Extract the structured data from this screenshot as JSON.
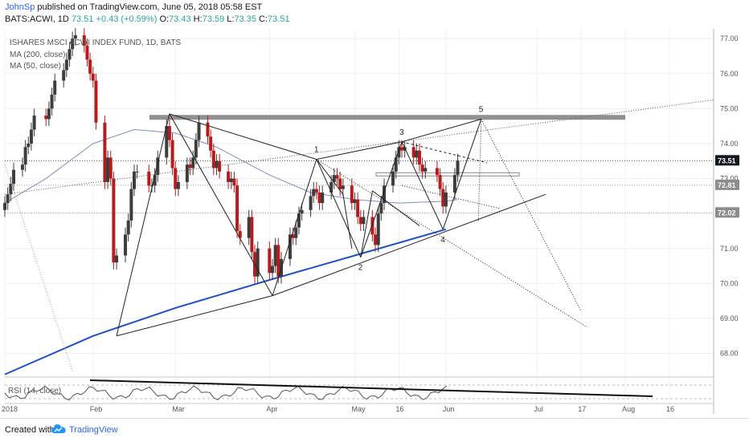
{
  "header": {
    "author": "JohnSp",
    "published_text": "published on TradingView.com, June 05, 2018 05:58 EST",
    "symbol": "BATS:ACWI, 1D",
    "last": "73.51",
    "change": "+0.43 (+0.59%)",
    "o_label": "O:",
    "o_value": "73.43",
    "h_label": "H:",
    "h_value": "73.59",
    "l_label": "L:",
    "l_value": "73.35",
    "c_label": "C:",
    "c_value": "73.51"
  },
  "footer": {
    "created_with": "Created with",
    "brand": "TradingView"
  },
  "colors": {
    "up": "#26a69a",
    "candle_up": "#3d3d3d",
    "candle_down": "#b71c1c",
    "ma200": "#1e50c8",
    "ma50": "#7f8fc8",
    "price_tag": "#131722",
    "level_tag": "#8c8c8c"
  },
  "chart_data": {
    "type": "candlestick",
    "title": "ISHARES MSCI ACWI INDEX FUND, 1D, BATS",
    "legend": [
      "MA (200, close)",
      "MA (50, close)"
    ],
    "ylim": [
      67.3,
      77.25
    ],
    "y_ticks": [
      "77.00",
      "76.00",
      "75.00",
      "74.00",
      "73.00",
      "72.00",
      "71.00",
      "70.00",
      "69.00",
      "68.00"
    ],
    "x_ticks": [
      "2018",
      "Feb",
      "Mar",
      "Apr",
      "May",
      "16",
      "Jun",
      "Jul",
      "17",
      "Aug",
      "16"
    ],
    "x_tick_dates": [
      "2018-01-02",
      "2018-02-01",
      "2018-03-01",
      "2018-04-02",
      "2018-05-01",
      "2018-05-16",
      "2018-06-01",
      "2018-07-02",
      "2018-07-17",
      "2018-08-01",
      "2018-08-16"
    ],
    "last_price": "73.51",
    "price_levels": [
      "72.81",
      "72.02"
    ],
    "resistance_level": 74.75,
    "candles_approx": {
      "description": "daily OHLC, approximate",
      "dates": [
        "01-02",
        "01-03",
        "01-04",
        "01-05",
        "01-08",
        "01-09",
        "01-10",
        "01-11",
        "01-12",
        "01-16",
        "01-17",
        "01-18",
        "01-19",
        "01-22",
        "01-23",
        "01-24",
        "01-25",
        "01-26",
        "01-29",
        "01-30",
        "01-31",
        "02-01",
        "02-02",
        "02-05",
        "02-06",
        "02-07",
        "02-08",
        "02-09",
        "02-12",
        "02-13",
        "02-14",
        "02-15",
        "02-16",
        "02-20",
        "02-21",
        "02-22",
        "02-23",
        "02-26",
        "02-27",
        "02-28",
        "03-01",
        "03-02",
        "03-05",
        "03-06",
        "03-07",
        "03-08",
        "03-09",
        "03-12",
        "03-13",
        "03-14",
        "03-15",
        "03-16",
        "03-19",
        "03-20",
        "03-21",
        "03-22",
        "03-23",
        "03-26",
        "03-27",
        "03-28",
        "03-29",
        "04-02",
        "04-03",
        "04-04",
        "04-05",
        "04-06",
        "04-09",
        "04-10",
        "04-11",
        "04-12",
        "04-13",
        "04-16",
        "04-17",
        "04-18",
        "04-19",
        "04-20",
        "04-23",
        "04-24",
        "04-25",
        "04-26",
        "04-27",
        "04-30",
        "05-01",
        "05-02",
        "05-03",
        "05-04",
        "05-07",
        "05-08",
        "05-09",
        "05-10",
        "05-11",
        "05-14",
        "05-15",
        "05-16",
        "05-17",
        "05-18",
        "05-21",
        "05-22",
        "05-23",
        "05-24",
        "05-25",
        "05-29",
        "05-30",
        "05-31",
        "06-01",
        "06-04",
        "06-05"
      ],
      "open": [
        72.1,
        72.3,
        72.55,
        72.85,
        73.25,
        73.4,
        73.9,
        74.0,
        74.4,
        74.8,
        74.7,
        75.0,
        75.4,
        75.8,
        76.1,
        76.4,
        76.7,
        77.0,
        77.1,
        76.8,
        76.4,
        76.0,
        75.8,
        74.6,
        72.9,
        73.6,
        73.0,
        70.6,
        70.8,
        71.4,
        71.8,
        72.7,
        73.2,
        73.2,
        72.8,
        72.8,
        73.1,
        73.6,
        74.5,
        74.1,
        73.3,
        72.7,
        72.9,
        73.4,
        73.3,
        73.6,
        74.1,
        74.6,
        74.2,
        73.8,
        73.3,
        73.5,
        73.2,
        72.9,
        73.0,
        72.8,
        71.5,
        71.3,
        71.9,
        70.9,
        70.2,
        71.0,
        70.3,
        70.5,
        71.1,
        70.2,
        70.7,
        71.4,
        71.3,
        71.6,
        72.0,
        72.1,
        72.5,
        72.7,
        72.6,
        72.3,
        72.6,
        72.9,
        73.1,
        73.0,
        72.7,
        72.8,
        72.3,
        72.4,
        71.9,
        71.7,
        71.9,
        71.4,
        71.1,
        72.0,
        72.3,
        72.8,
        73.2,
        73.6,
        73.9,
        73.8,
        73.9,
        73.6,
        73.8,
        73.4,
        73.2,
        73.3,
        73.1,
        72.7,
        72.2,
        72.6,
        73.1
      ],
      "close": [
        72.3,
        72.55,
        72.85,
        73.25,
        73.4,
        73.9,
        74.0,
        74.4,
        74.8,
        74.7,
        75.0,
        75.4,
        75.8,
        76.1,
        76.4,
        76.7,
        77.0,
        77.1,
        76.8,
        76.4,
        76.0,
        75.8,
        74.6,
        72.9,
        73.6,
        73.0,
        70.6,
        70.8,
        71.4,
        71.8,
        72.7,
        73.2,
        73.2,
        72.8,
        72.8,
        73.1,
        73.6,
        74.5,
        74.1,
        73.3,
        72.7,
        72.9,
        73.4,
        73.3,
        73.6,
        74.1,
        74.6,
        74.2,
        73.8,
        73.3,
        73.5,
        73.2,
        72.9,
        73.0,
        72.8,
        71.5,
        71.3,
        71.9,
        70.9,
        70.2,
        71.0,
        70.3,
        70.5,
        71.1,
        70.2,
        70.7,
        71.4,
        71.3,
        71.6,
        72.0,
        72.1,
        72.5,
        72.7,
        72.6,
        72.3,
        72.6,
        72.9,
        73.1,
        73.0,
        72.7,
        72.8,
        72.3,
        72.4,
        71.9,
        71.7,
        71.9,
        71.4,
        71.1,
        72.0,
        72.3,
        72.8,
        73.2,
        73.6,
        73.9,
        73.8,
        73.9,
        73.6,
        73.8,
        73.4,
        73.2,
        73.3,
        73.1,
        72.7,
        72.2,
        72.6,
        73.1,
        73.51
      ]
    },
    "ma200_points": [
      [
        "2018-01-02",
        67.4
      ],
      [
        "2018-02-01",
        68.5
      ],
      [
        "2018-03-01",
        69.3
      ],
      [
        "2018-04-02",
        70.1
      ],
      [
        "2018-05-01",
        70.8
      ],
      [
        "2018-06-01",
        71.55
      ]
    ],
    "ma50_points": [
      [
        "2018-01-02",
        72.3
      ],
      [
        "2018-01-16",
        73.0
      ],
      [
        "2018-02-01",
        74.0
      ],
      [
        "2018-02-15",
        74.4
      ],
      [
        "2018-03-01",
        74.3
      ],
      [
        "2018-03-15",
        73.9
      ],
      [
        "2018-04-02",
        73.1
      ],
      [
        "2018-04-16",
        72.6
      ],
      [
        "2018-05-01",
        72.4
      ],
      [
        "2018-05-16",
        72.3
      ],
      [
        "2018-06-01",
        72.35
      ],
      [
        "2018-06-05",
        72.4
      ]
    ],
    "wave_labels": [
      {
        "label": "1",
        "date": "2018-04-18",
        "value": 73.55
      },
      {
        "label": "2",
        "date": "2018-05-03",
        "value": 70.75
      },
      {
        "label": "3",
        "date": "2018-05-17",
        "value": 74.05
      },
      {
        "label": "4",
        "date": "2018-05-31",
        "value": 71.55
      },
      {
        "label": "5",
        "date": "2018-06-13",
        "value": 74.7
      }
    ],
    "indicator": {
      "name": "RSI (14, close)"
    }
  }
}
